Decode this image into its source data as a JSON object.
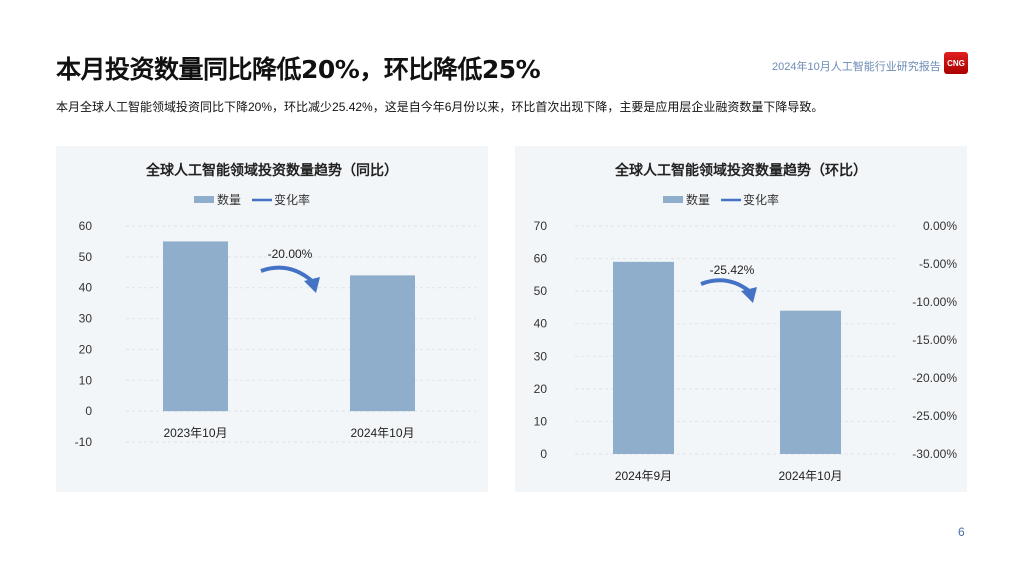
{
  "header": {
    "title": "本月投资数量同比降低20%，环比降低25%",
    "report": "2024年10月人工智能行业研究报告",
    "logo": "CNG"
  },
  "summary": "本月全球人工智能领域投资同比下降20%，环比减少25.42%，这是自今年6月份以来，环比首次出现下降，主要是应用层企业融资数量下降导致。",
  "page_number": "6",
  "colors": {
    "bar": "#8eaecb",
    "line": "#4472c4",
    "panel": "#f3f6f9"
  },
  "chart_data": [
    {
      "type": "bar",
      "title": "全球人工智能领域投资数量趋势（同比）",
      "legend": [
        "数量",
        "变化率"
      ],
      "legend_position": "top",
      "categories": [
        "2023年10月",
        "2024年10月"
      ],
      "series": [
        {
          "name": "数量",
          "values": [
            55,
            44
          ]
        }
      ],
      "yticks": [
        "60",
        "50",
        "40",
        "30",
        "20",
        "10",
        "0",
        "-10"
      ],
      "ylim": [
        -10,
        60
      ],
      "annotation": "-20.00%",
      "grid": true
    },
    {
      "type": "bar",
      "title": "全球人工智能领域投资数量趋势（环比）",
      "legend": [
        "数量",
        "变化率"
      ],
      "legend_position": "top",
      "categories": [
        "2024年9月",
        "2024年10月"
      ],
      "series": [
        {
          "name": "数量",
          "values": [
            59,
            44
          ]
        }
      ],
      "yticks": [
        "70",
        "60",
        "50",
        "40",
        "30",
        "20",
        "10",
        "0"
      ],
      "ylim": [
        0,
        70
      ],
      "y2ticks": [
        "0.00%",
        "-5.00%",
        "-10.00%",
        "-15.00%",
        "-20.00%",
        "-25.00%",
        "-30.00%"
      ],
      "y2lim": [
        -30,
        0
      ],
      "annotation": "-25.42%",
      "grid": true
    }
  ]
}
